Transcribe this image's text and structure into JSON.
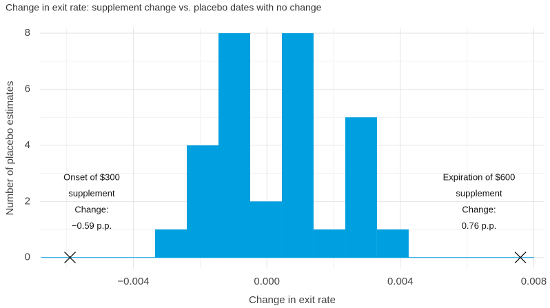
{
  "chart_data": {
    "type": "histogram",
    "title": "Change in exit rate: supplement change vs. placebo dates with no change",
    "x_label": "Change in exit rate",
    "y_label": "Number of placebo estimates",
    "bins": [
      -0.00335,
      -0.0024,
      -0.00145,
      -0.0005,
      0.00045,
      0.0014,
      0.00235,
      0.0033,
      0.00425
    ],
    "values": [
      1,
      4,
      8,
      2,
      8,
      1,
      5,
      1
    ],
    "color": "#009fdf",
    "xlim": [
      -0.0068,
      0.0083
    ],
    "ylim": [
      -0.4,
      8.2
    ],
    "xticks": [
      {
        "value": -0.004,
        "label": "−0.004"
      },
      {
        "value": 0,
        "label": "0.000"
      },
      {
        "value": 0.004,
        "label": "0.004"
      },
      {
        "value": 0.008,
        "label": "0.008"
      }
    ],
    "xminorticks": [
      -0.006,
      -0.002,
      0.002,
      0.006
    ],
    "yticks": [
      0,
      2,
      4,
      6,
      8
    ],
    "yminorticks": [
      1,
      3,
      5,
      7
    ],
    "grid": true,
    "markers": [
      {
        "x": -0.0059,
        "y": 0,
        "lines": [
          "Onset of $300",
          "supplement",
          "Change:",
          "−0.59 p.p."
        ]
      },
      {
        "x": 0.0076,
        "y": 0,
        "lines": [
          "Expiration of $600",
          "supplement",
          "Change:",
          "0.76 p.p."
        ]
      }
    ]
  }
}
